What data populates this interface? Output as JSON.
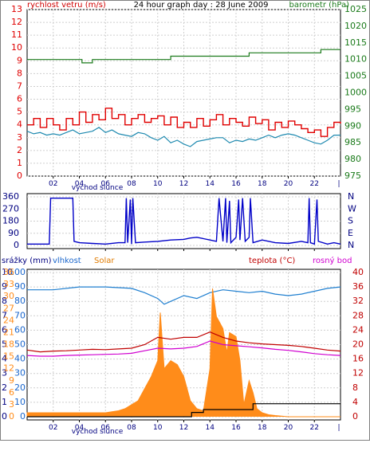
{
  "title": "24 hour graph day : 28 June 2009",
  "colors": {
    "wind": "#e00000",
    "gust": "#e00000",
    "wind_avg": "#1f8ab0",
    "barometer": "#1a7a1a",
    "direction": "#0000c8",
    "humidity": "#1f7fd0",
    "solar": "#ff8c1a",
    "rain": "#000000",
    "temperature": "#c00000",
    "dewpoint": "#d000d0",
    "axis_blue": "#1a66cc",
    "axis_darkblue": "#000080"
  },
  "labels": {
    "wind": "rychlost vetru (m/s)",
    "barometer": "barometr (hPa)",
    "sunrise": "východ slunce",
    "rain": "srážky (mm)",
    "humidity": "vlhkost",
    "solar": "Solar",
    "temperature": "teplota (°C)",
    "dewpoint": "rosný bod"
  },
  "x_ticks": [
    "02",
    "04",
    "06",
    "08",
    "10",
    "12",
    "14",
    "16",
    "18",
    "20",
    "22"
  ],
  "chart_data": [
    {
      "type": "line",
      "id": "wind_pressure",
      "xlabel": "",
      "xlim": [
        0,
        24
      ],
      "y_left": {
        "label": "rychlost vetru (m/s)",
        "ticks": [
          "0",
          "1",
          "2",
          "3",
          "4",
          "5",
          "6",
          "7",
          "8",
          "9",
          "10",
          "11",
          "12",
          "13"
        ],
        "ylim": [
          0,
          13
        ]
      },
      "y_right": {
        "label": "barometr (hPa)",
        "ticks": [
          "975",
          "980",
          "985",
          "990",
          "995",
          "1000",
          "1005",
          "1010",
          "1015",
          "1020",
          "1025"
        ],
        "ylim": [
          975,
          1025
        ]
      },
      "series": [
        {
          "name": "rychlost vetru (m/s)",
          "axis": "left",
          "style": "step",
          "x": [
            0,
            0.5,
            1,
            1.5,
            2,
            2.5,
            3,
            3.5,
            4,
            4.5,
            5,
            5.5,
            6,
            6.5,
            7,
            7.5,
            8,
            8.5,
            9,
            9.5,
            10,
            10.5,
            11,
            11.5,
            12,
            12.5,
            13,
            13.5,
            14,
            14.5,
            15,
            15.5,
            16,
            16.5,
            17,
            17.5,
            18,
            18.5,
            19,
            19.5,
            20,
            20.5,
            21,
            21.5,
            22,
            22.5,
            23,
            23.5,
            24
          ],
          "y": [
            4,
            4.5,
            3.8,
            4.5,
            4,
            3.6,
            4.5,
            4,
            5,
            4.2,
            4.8,
            4.4,
            5.3,
            4.5,
            4.8,
            4,
            4.5,
            4.8,
            4.2,
            4.5,
            4.7,
            4,
            4.6,
            3.8,
            4.2,
            3.8,
            4.5,
            3.9,
            4.4,
            4.8,
            4,
            4.5,
            4.2,
            3.9,
            4.6,
            4.1,
            4.4,
            3.6,
            4.2,
            3.8,
            4.3,
            4,
            3.7,
            3.4,
            3.6,
            3.1,
            3.8,
            4.2,
            4.1
          ]
        },
        {
          "name": "average",
          "axis": "left",
          "style": "line",
          "x": [
            0,
            0.5,
            1,
            1.5,
            2,
            2.5,
            3,
            3.5,
            4,
            4.5,
            5,
            5.5,
            6,
            6.5,
            7,
            7.5,
            8,
            8.5,
            9,
            9.5,
            10,
            10.5,
            11,
            11.5,
            12,
            12.5,
            13,
            13.5,
            14,
            14.5,
            15,
            15.5,
            16,
            16.5,
            17,
            17.5,
            18,
            18.5,
            19,
            19.5,
            20,
            20.5,
            21,
            21.5,
            22,
            22.5,
            23,
            23.5,
            24
          ],
          "y": [
            3.5,
            3.3,
            3.4,
            3.2,
            3.3,
            3.2,
            3.4,
            3.6,
            3.3,
            3.4,
            3.5,
            3.8,
            3.4,
            3.6,
            3.3,
            3.2,
            3.1,
            3.4,
            3.3,
            3,
            2.8,
            3.1,
            2.6,
            2.8,
            2.5,
            2.3,
            2.7,
            2.8,
            2.9,
            3,
            3,
            2.6,
            2.8,
            2.7,
            2.9,
            2.8,
            3,
            3.2,
            3,
            3.2,
            3.3,
            3.2,
            3,
            2.8,
            2.6,
            2.5,
            2.8,
            3.2,
            3.2
          ]
        },
        {
          "name": "barometr (hPa)",
          "axis": "right",
          "style": "step",
          "x": [
            0,
            4,
            4.2,
            5,
            10,
            11,
            16.5,
            17,
            22,
            22.5,
            23,
            24
          ],
          "y": [
            1010,
            1010,
            1009,
            1010,
            1010,
            1011,
            1011,
            1012,
            1012,
            1013,
            1013,
            1013
          ]
        }
      ]
    },
    {
      "type": "line",
      "id": "wind_direction",
      "xlim": [
        0,
        24
      ],
      "y_left": {
        "ticks": [
          "0",
          "90",
          "180",
          "270",
          "360"
        ],
        "ylim": [
          0,
          360
        ]
      },
      "y_right": {
        "ticks": [
          "N",
          "E",
          "S",
          "W",
          "N"
        ]
      },
      "series": [
        {
          "name": "direction",
          "style": "line",
          "x": [
            0,
            1.7,
            1.8,
            3.5,
            3.6,
            4,
            5,
            6,
            7,
            7.5,
            7.6,
            7.7,
            7.9,
            8,
            8.1,
            8.3,
            9,
            10,
            11,
            12,
            12.5,
            13,
            13.5,
            14,
            14.5,
            14.7,
            15,
            15.2,
            15.3,
            15.5,
            15.6,
            16,
            16.2,
            16.3,
            16.5,
            16.7,
            17,
            17.1,
            17.3,
            18,
            19,
            20,
            21,
            21.5,
            21.6,
            21.7,
            22,
            22.2,
            22.3,
            23,
            23.5,
            24
          ],
          "y": [
            10,
            10,
            350,
            350,
            30,
            20,
            15,
            10,
            20,
            20,
            350,
            20,
            340,
            10,
            350,
            20,
            25,
            30,
            40,
            45,
            55,
            60,
            50,
            40,
            30,
            350,
            30,
            350,
            20,
            330,
            20,
            60,
            340,
            40,
            350,
            30,
            60,
            350,
            20,
            40,
            20,
            15,
            30,
            20,
            350,
            20,
            10,
            340,
            30,
            10,
            20,
            10
          ]
        }
      ]
    },
    {
      "type": "line",
      "id": "rain_humidity_solar_temperature",
      "xlim": [
        0,
        24
      ],
      "y_left_rain": {
        "label": "srážky (mm)",
        "ticks": [
          "0",
          "1",
          "2",
          "3",
          "4",
          "5",
          "6",
          "7",
          "8",
          "9",
          "10"
        ],
        "ylim": [
          0,
          10
        ]
      },
      "y_left_humidity": {
        "label": "vlhkost",
        "ticks": [
          "0",
          "10",
          "20",
          "30",
          "40",
          "50",
          "60",
          "70",
          "80",
          "90",
          "100"
        ],
        "ylim": [
          0,
          100
        ]
      },
      "y_left_solar": {
        "label": "Solar",
        "ticks": [
          "0",
          "3",
          "6",
          "9",
          "12",
          "15",
          "18",
          "21",
          "24",
          "27",
          "30",
          "33",
          "36"
        ],
        "ylim": [
          0,
          36
        ]
      },
      "y_right": {
        "label": "teplota (°C)",
        "ticks": [
          "0",
          "4",
          "8",
          "12",
          "16",
          "20",
          "24",
          "28",
          "32",
          "36",
          "40"
        ],
        "ylim": [
          0,
          40
        ]
      },
      "series": [
        {
          "name": "vlhkost",
          "axis": "humidity",
          "x": [
            0,
            2,
            4,
            6,
            8,
            9,
            10,
            10.5,
            11,
            12,
            13,
            14,
            15,
            16,
            17,
            18,
            19,
            20,
            21,
            22,
            23,
            24
          ],
          "y": [
            88,
            88,
            90,
            90,
            89,
            86,
            82,
            78,
            80,
            84,
            82,
            86,
            88,
            87,
            86,
            87,
            85,
            84,
            85,
            87,
            89,
            90
          ]
        },
        {
          "name": "Solar",
          "axis": "solar",
          "style": "area",
          "x": [
            0,
            5,
            6,
            7,
            7.5,
            8,
            8.5,
            9,
            9.5,
            10,
            10.2,
            10.5,
            11,
            11.5,
            12,
            12.5,
            13,
            13.5,
            14,
            14.2,
            14.5,
            15,
            15.3,
            15.5,
            16,
            16.3,
            16.6,
            17,
            17.3,
            17.6,
            18,
            18.5,
            19,
            20,
            21,
            22,
            24
          ],
          "y": [
            1,
            1,
            1,
            1.5,
            2,
            3,
            4,
            7,
            10,
            14,
            26,
            12,
            14,
            13,
            10,
            4,
            2,
            1.5,
            12,
            32,
            25,
            22,
            16,
            21,
            20,
            14,
            3,
            9,
            6,
            2,
            1,
            0.5,
            0.3,
            0,
            0,
            0,
            0
          ]
        },
        {
          "name": "teplota (°C)",
          "axis": "right",
          "x": [
            0,
            1,
            2,
            3,
            4,
            5,
            6,
            7,
            8,
            9,
            10,
            11,
            12,
            13,
            14,
            15,
            16,
            17,
            18,
            19,
            20,
            21,
            22,
            23,
            24
          ],
          "y": [
            18.5,
            18,
            18.2,
            18.3,
            18.5,
            18.7,
            18.6,
            18.8,
            19,
            20,
            22,
            21.5,
            22,
            22,
            23.5,
            22,
            21,
            20.5,
            20.2,
            20,
            19.8,
            19.5,
            19,
            18.5,
            18.2
          ]
        },
        {
          "name": "rosný bod",
          "axis": "right",
          "x": [
            0,
            1,
            2,
            3,
            4,
            5,
            6,
            7,
            8,
            9,
            10,
            11,
            12,
            13,
            14,
            15,
            16,
            17,
            18,
            19,
            20,
            21,
            22,
            23,
            24
          ],
          "y": [
            17,
            16.8,
            16.8,
            17,
            17.1,
            17.2,
            17.3,
            17.4,
            17.6,
            18.3,
            19,
            18.8,
            19,
            19.5,
            21,
            20,
            19.7,
            19.4,
            19.1,
            18.7,
            18.4,
            18,
            17.5,
            17.2,
            17
          ]
        },
        {
          "name": "srážky (mm)",
          "axis": "rain",
          "style": "step",
          "x": [
            0,
            12.5,
            12.6,
            13.5,
            14,
            17,
            17.3,
            24
          ],
          "y": [
            0,
            0,
            0.3,
            0.5,
            0.5,
            0.5,
            0.9,
            0.9
          ]
        }
      ]
    }
  ]
}
